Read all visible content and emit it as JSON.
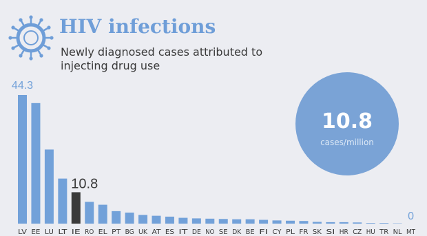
{
  "header": {
    "title": "HIV infections",
    "subtitle": "Newly diagnosed cases attributed to injecting drug use",
    "icon": "virus-icon"
  },
  "colors": {
    "bar": "#72a1d9",
    "highlight": "#3a3a3a",
    "circle": "#7aa3d6",
    "title": "#6f9ed8",
    "background": "#ecedf2",
    "axis_text": "#3a3a3a"
  },
  "circle": {
    "value": "10.8",
    "unit": "cases/million"
  },
  "chart_data": {
    "type": "bar",
    "title": "HIV infections",
    "subtitle": "Newly diagnosed cases attributed to injecting drug use",
    "xlabel": "",
    "ylabel": "",
    "ylim": [
      0,
      44.3
    ],
    "grid": false,
    "categories": [
      "LV",
      "EE",
      "LU",
      "LT",
      "IE",
      "RO",
      "EL",
      "PT",
      "BG",
      "UK",
      "AT",
      "ES",
      "IT",
      "DE",
      "NO",
      "SE",
      "DK",
      "BE",
      "FI",
      "CY",
      "PL",
      "FR",
      "SK",
      "SI",
      "HR",
      "CZ",
      "HU",
      "TR",
      "NL",
      "MT"
    ],
    "values": [
      44.3,
      41.5,
      25.5,
      15.5,
      10.8,
      7.5,
      6.5,
      4.3,
      3.8,
      3.0,
      2.7,
      2.4,
      2.0,
      1.8,
      1.7,
      1.6,
      1.5,
      1.5,
      1.3,
      1.1,
      1.0,
      0.9,
      0.6,
      0.5,
      0.5,
      0.4,
      0.2,
      0.2,
      0.1,
      0
    ],
    "highlight": "IE",
    "data_labels": [
      {
        "category": "LV",
        "text": "44.3"
      },
      {
        "category": "IE",
        "text": "10.8"
      },
      {
        "category": "MT",
        "text": "0"
      }
    ]
  }
}
